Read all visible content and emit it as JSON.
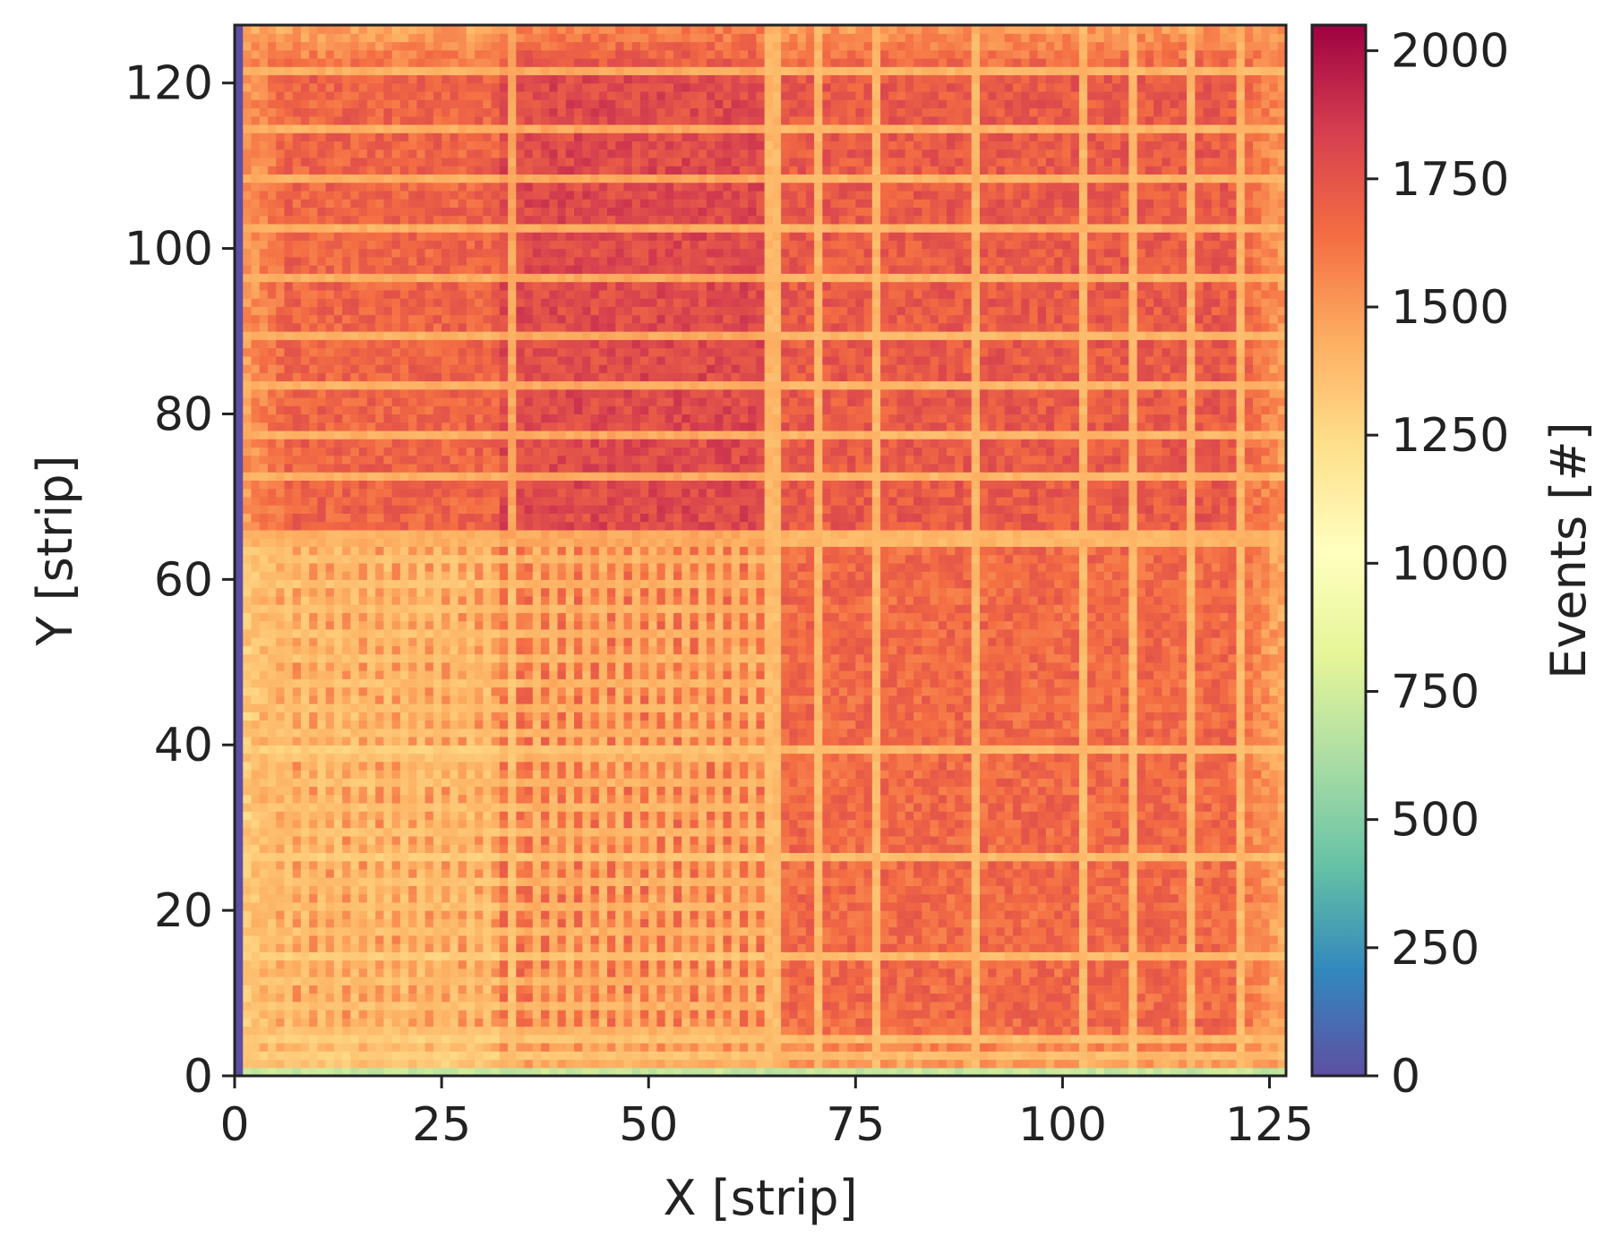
{
  "chart_data": {
    "type": "heatmap",
    "title": "",
    "xlabel": "X [strip]",
    "ylabel": "Y [strip]",
    "xlim": [
      0,
      127
    ],
    "ylim": [
      0,
      127
    ],
    "xticks": [
      0,
      25,
      50,
      75,
      100,
      125
    ],
    "yticks": [
      0,
      20,
      40,
      60,
      80,
      100,
      120
    ],
    "xtick_labels": [
      "0",
      "25",
      "50",
      "75",
      "100",
      "125"
    ],
    "ytick_labels": [
      "0",
      "20",
      "40",
      "60",
      "80",
      "100",
      "120"
    ],
    "colorbar": {
      "label": "Events [#]",
      "colormap": "Spectral_r",
      "range": [
        0,
        2050
      ],
      "ticks": [
        0,
        250,
        500,
        750,
        1000,
        1250,
        1500,
        1750,
        2000
      ],
      "tick_labels": [
        "0",
        "250",
        "500",
        "750",
        "1000",
        "1250",
        "1500",
        "1750",
        "2000"
      ]
    },
    "grid": false,
    "edge_values": {
      "column_x0_to_1": 0,
      "row_y0_to_1": 700
    },
    "regions": [
      {
        "x": [
          1,
          32
        ],
        "y": [
          1,
          64
        ],
        "mean_value": 1500,
        "line_dip": 1300
      },
      {
        "x": [
          32,
          64
        ],
        "y": [
          1,
          64
        ],
        "mean_value": 1630,
        "line_dip": 1350
      },
      {
        "x": [
          1,
          32
        ],
        "y": [
          64,
          127
        ],
        "mean_value": 1680,
        "line_dip": 1420
      },
      {
        "x": [
          32,
          64
        ],
        "y": [
          64,
          127
        ],
        "mean_value": 1790,
        "line_dip": 1450
      },
      {
        "x": [
          64,
          127
        ],
        "y": [
          1,
          64
        ],
        "mean_value": 1660,
        "line_dip": 1380
      },
      {
        "x": [
          64,
          127
        ],
        "y": [
          64,
          127
        ],
        "mean_value": 1720,
        "line_dip": 1400
      }
    ],
    "low_lines": {
      "vertical_x": [
        33,
        64,
        65,
        70,
        77,
        89,
        102,
        108,
        115,
        121
      ],
      "horizontal_y": [
        2,
        4,
        14,
        26,
        39,
        64,
        65,
        72,
        77,
        83,
        89,
        96,
        102,
        108,
        114,
        121
      ],
      "fine_grid_vertical_x": [
        4,
        6,
        8,
        10,
        12,
        14,
        16,
        18,
        20,
        22,
        24,
        26,
        28,
        30,
        36,
        38,
        40,
        42,
        44,
        46,
        48,
        50,
        52,
        54,
        56,
        58,
        60,
        62
      ],
      "fine_grid_horizontal_y": [
        5,
        8,
        11,
        14,
        17,
        20,
        23,
        26,
        29,
        32,
        35,
        38,
        41,
        44,
        47,
        50,
        53,
        56,
        59,
        62
      ]
    }
  }
}
